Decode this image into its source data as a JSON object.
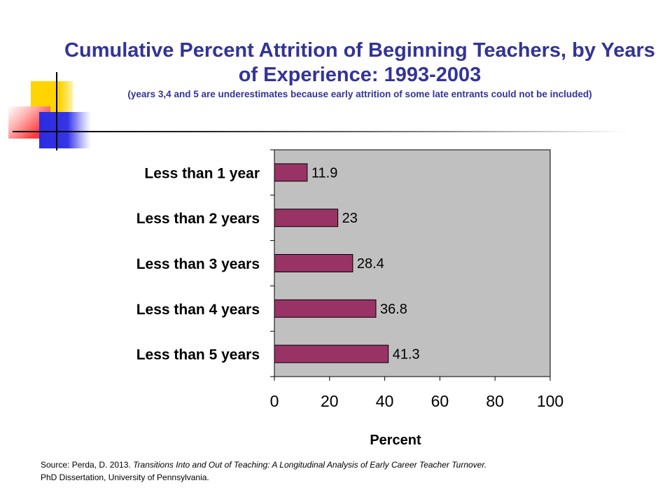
{
  "title": "Cumulative Percent Attrition of Beginning Teachers, by Years of Experience: 1993-2003",
  "subtitle": "(years 3,4 and 5 are underestimates because early attrition of some late entrants could not be included)",
  "chart_data": {
    "type": "bar",
    "orientation": "horizontal",
    "categories": [
      "Less than 1 year",
      "Less than 2 years",
      "Less than 3 years",
      "Less than 4 years",
      "Less than 5 years"
    ],
    "values": [
      11.9,
      23,
      28.4,
      36.8,
      41.3
    ],
    "value_labels": [
      "11.9",
      "23",
      "28.4",
      "36.8",
      "41.3"
    ],
    "xlabel": "Percent",
    "ylabel": "",
    "xlim": [
      0,
      100
    ],
    "xticks": [
      "0",
      "20",
      "40",
      "60",
      "80",
      "100"
    ],
    "grid": false,
    "legend": "none",
    "bar_color": "#993366",
    "plot_background": "#c0c0c0"
  },
  "source": {
    "prefix": "Source: Perda, D. 2013. ",
    "title": "Transitions Into and Out of Teaching: A Longitudinal Analysis of Early Career Teacher Turnover.",
    "line2": "PhD Dissertation, University of Pennsylvania."
  },
  "colors": {
    "title": "#333399",
    "deco_yellow": "#ffd400",
    "deco_red": "#ff3a3a",
    "deco_blue": "#2b2be0"
  }
}
